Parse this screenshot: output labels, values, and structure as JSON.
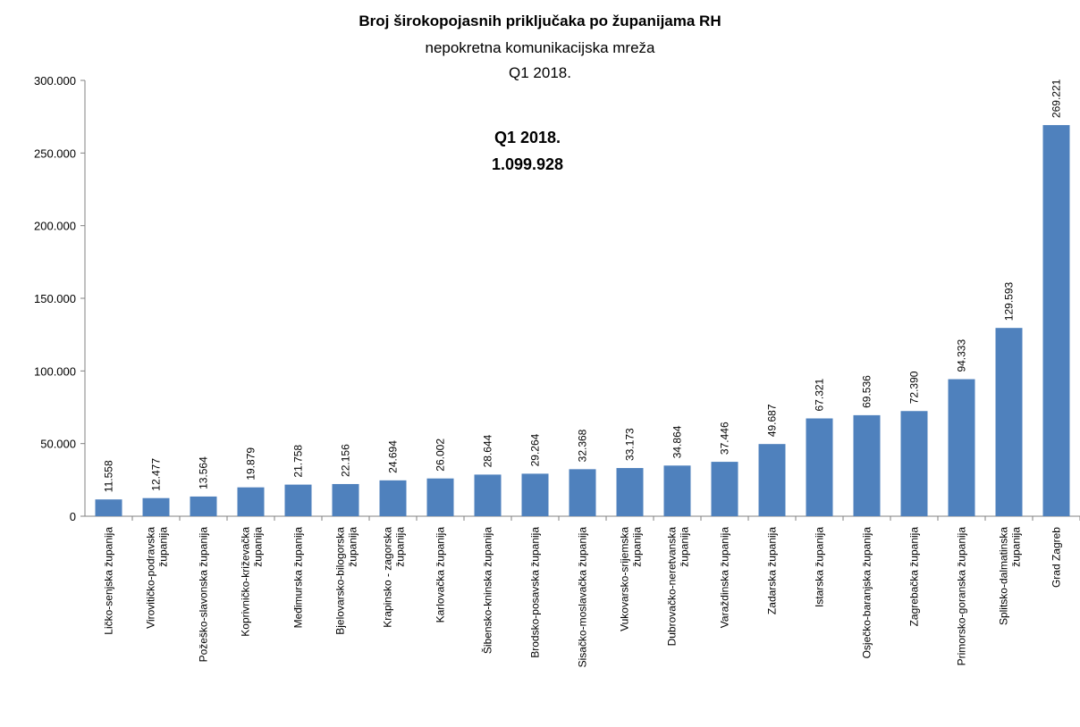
{
  "chart_data": {
    "type": "bar",
    "title": "Broj širokopojasnih priključaka po županijama RH",
    "subtitle": "nepokretna komunikacijska mreža",
    "period": "Q1 2018.",
    "annotation": {
      "label": "Q1 2018.",
      "total": "1.099.928"
    },
    "xlabel": "",
    "ylabel": "",
    "ylim": [
      0,
      300000
    ],
    "yticks": [
      0,
      50000,
      100000,
      150000,
      200000,
      250000,
      300000
    ],
    "ytick_labels": [
      "0",
      "50.000",
      "100.000",
      "150.000",
      "200.000",
      "250.000",
      "300.000"
    ],
    "grid": false,
    "bar_color": "#4f81bd",
    "categories": [
      "Ličko-senjska županija",
      "Virovitičko-podravska županija",
      "Požeško-slavonska županija",
      "Koprivničko-križevačka županija",
      "Međimurska županija",
      "Bjelovarsko-bilogorska županija",
      "Krapinsko - zagorska županija",
      "Karlovačka županija",
      "Šibensko-kninska županija",
      "Brodsko-posavska županija",
      "Sisačko-moslavačka županija",
      "Vukovarsko-srijemska županija",
      "Dubrovačko-neretvanska županija",
      "Varaždinska županija",
      "Zadarska županija",
      "Istarska županija",
      "Osječko-baranjska županija",
      "Zagrebačka županija",
      "Primorsko-goranska županija",
      "Splitsko-dalmatinska županija",
      "Grad Zagreb"
    ],
    "values": [
      11558,
      12477,
      13564,
      19879,
      21758,
      22156,
      24694,
      26002,
      28644,
      29264,
      32368,
      33173,
      34864,
      37446,
      49687,
      67321,
      69536,
      72390,
      94333,
      129593,
      269221
    ],
    "data_labels": [
      "11.558",
      "12.477",
      "13.564",
      "19.879",
      "21.758",
      "22.156",
      "24.694",
      "26.002",
      "28.644",
      "29.264",
      "32.368",
      "33.173",
      "34.864",
      "37.446",
      "49.687",
      "67.321",
      "69.536",
      "72.390",
      "94.333",
      "129.593",
      "269.221"
    ]
  }
}
